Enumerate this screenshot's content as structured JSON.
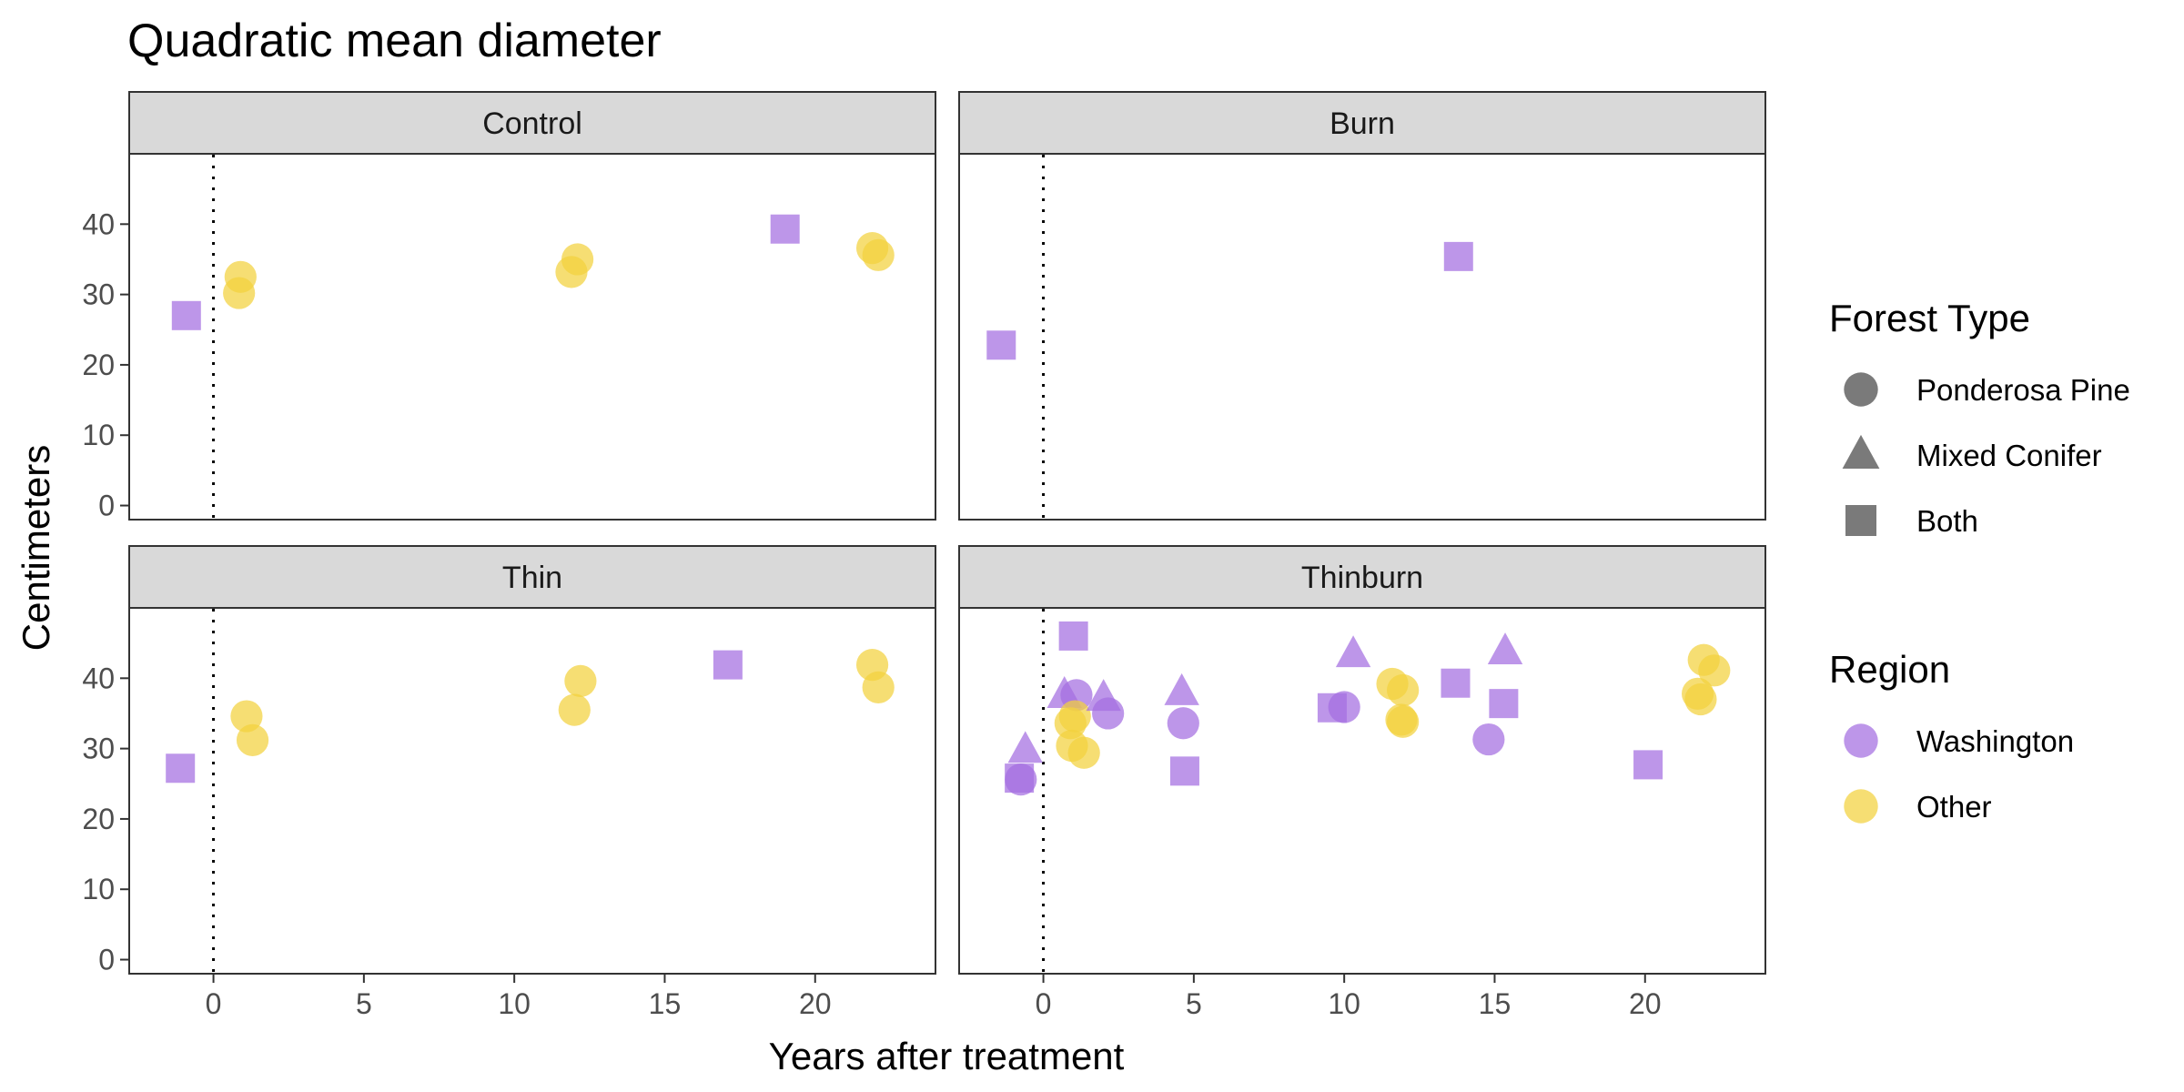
{
  "chart_data": {
    "type": "scatter",
    "title": "Quadratic mean diameter",
    "xlabel": "Years after treatment",
    "ylabel": "Centimeters",
    "xlim": [
      -2.8,
      24.0
    ],
    "ylim": [
      -2.0,
      50.0
    ],
    "xticks": [
      0,
      5,
      10,
      15,
      20
    ],
    "yticks": [
      0,
      10,
      20,
      30,
      40
    ],
    "reference_line_x": 0,
    "grid": false,
    "legend_position": "right",
    "colors": {
      "Washington": "#a46ee0",
      "Other": "#f2d13d"
    },
    "legends": [
      {
        "title": "Forest Type",
        "entries": [
          {
            "label": "Ponderosa Pine",
            "shape": "circle"
          },
          {
            "label": "Mixed Conifer",
            "shape": "triangle"
          },
          {
            "label": "Both",
            "shape": "square"
          }
        ]
      },
      {
        "title": "Region",
        "entries": [
          {
            "label": "Washington",
            "color_key": "Washington"
          },
          {
            "label": "Other",
            "color_key": "Other"
          }
        ]
      }
    ],
    "panels": [
      {
        "name": "Control",
        "points": [
          {
            "x": -0.9,
            "y": 27.0,
            "shape": "square",
            "region": "Washington"
          },
          {
            "x": 0.9,
            "y": 32.5,
            "shape": "circle",
            "region": "Other"
          },
          {
            "x": 0.85,
            "y": 30.2,
            "shape": "circle",
            "region": "Other"
          },
          {
            "x": 12.1,
            "y": 35.0,
            "shape": "circle",
            "region": "Other"
          },
          {
            "x": 11.9,
            "y": 33.2,
            "shape": "circle",
            "region": "Other"
          },
          {
            "x": 19.0,
            "y": 39.3,
            "shape": "square",
            "region": "Washington"
          },
          {
            "x": 21.9,
            "y": 36.6,
            "shape": "circle",
            "region": "Other"
          },
          {
            "x": 22.1,
            "y": 35.6,
            "shape": "circle",
            "region": "Other"
          }
        ]
      },
      {
        "name": "Burn",
        "points": [
          {
            "x": -1.4,
            "y": 22.8,
            "shape": "square",
            "region": "Washington"
          },
          {
            "x": 13.8,
            "y": 35.4,
            "shape": "square",
            "region": "Washington"
          }
        ]
      },
      {
        "name": "Thin",
        "points": [
          {
            "x": -1.1,
            "y": 27.2,
            "shape": "square",
            "region": "Washington"
          },
          {
            "x": 1.1,
            "y": 34.6,
            "shape": "circle",
            "region": "Other"
          },
          {
            "x": 1.3,
            "y": 31.2,
            "shape": "circle",
            "region": "Other"
          },
          {
            "x": 12.2,
            "y": 39.6,
            "shape": "circle",
            "region": "Other"
          },
          {
            "x": 12.0,
            "y": 35.5,
            "shape": "circle",
            "region": "Other"
          },
          {
            "x": 17.1,
            "y": 41.9,
            "shape": "square",
            "region": "Washington"
          },
          {
            "x": 21.9,
            "y": 41.9,
            "shape": "circle",
            "region": "Other"
          },
          {
            "x": 22.1,
            "y": 38.7,
            "shape": "circle",
            "region": "Other"
          }
        ]
      },
      {
        "name": "Thinburn",
        "points": [
          {
            "x": -0.8,
            "y": 25.8,
            "shape": "square",
            "region": "Washington"
          },
          {
            "x": -0.75,
            "y": 25.6,
            "shape": "circle",
            "region": "Washington"
          },
          {
            "x": -0.6,
            "y": 29.8,
            "shape": "triangle",
            "region": "Washington"
          },
          {
            "x": 0.7,
            "y": 37.6,
            "shape": "triangle",
            "region": "Washington"
          },
          {
            "x": 1.0,
            "y": 46.0,
            "shape": "square",
            "region": "Washington"
          },
          {
            "x": 1.1,
            "y": 37.6,
            "shape": "circle",
            "region": "Washington"
          },
          {
            "x": 0.9,
            "y": 33.6,
            "shape": "circle",
            "region": "Other"
          },
          {
            "x": 1.05,
            "y": 34.6,
            "shape": "circle",
            "region": "Other"
          },
          {
            "x": 0.95,
            "y": 30.4,
            "shape": "circle",
            "region": "Other"
          },
          {
            "x": 1.35,
            "y": 29.4,
            "shape": "circle",
            "region": "Other"
          },
          {
            "x": 2.0,
            "y": 37.2,
            "shape": "triangle",
            "region": "Washington"
          },
          {
            "x": 2.15,
            "y": 35.0,
            "shape": "circle",
            "region": "Washington"
          },
          {
            "x": 4.6,
            "y": 38.0,
            "shape": "triangle",
            "region": "Washington"
          },
          {
            "x": 4.65,
            "y": 33.6,
            "shape": "circle",
            "region": "Washington"
          },
          {
            "x": 4.7,
            "y": 26.8,
            "shape": "square",
            "region": "Washington"
          },
          {
            "x": 9.6,
            "y": 35.8,
            "shape": "square",
            "region": "Washington"
          },
          {
            "x": 10.0,
            "y": 35.9,
            "shape": "circle",
            "region": "Washington"
          },
          {
            "x": 10.3,
            "y": 43.4,
            "shape": "triangle",
            "region": "Washington"
          },
          {
            "x": 11.6,
            "y": 39.2,
            "shape": "circle",
            "region": "Other"
          },
          {
            "x": 11.95,
            "y": 38.3,
            "shape": "circle",
            "region": "Other"
          },
          {
            "x": 11.9,
            "y": 34.1,
            "shape": "circle",
            "region": "Other"
          },
          {
            "x": 11.95,
            "y": 33.8,
            "shape": "circle",
            "region": "Other"
          },
          {
            "x": 13.7,
            "y": 39.3,
            "shape": "square",
            "region": "Washington"
          },
          {
            "x": 14.8,
            "y": 31.3,
            "shape": "circle",
            "region": "Washington"
          },
          {
            "x": 15.3,
            "y": 36.4,
            "shape": "square",
            "region": "Washington"
          },
          {
            "x": 15.35,
            "y": 43.8,
            "shape": "triangle",
            "region": "Washington"
          },
          {
            "x": 20.1,
            "y": 27.7,
            "shape": "square",
            "region": "Washington"
          },
          {
            "x": 21.75,
            "y": 37.8,
            "shape": "circle",
            "region": "Other"
          },
          {
            "x": 21.85,
            "y": 37.0,
            "shape": "circle",
            "region": "Other"
          },
          {
            "x": 21.95,
            "y": 42.6,
            "shape": "circle",
            "region": "Other"
          },
          {
            "x": 22.3,
            "y": 41.1,
            "shape": "circle",
            "region": "Other"
          }
        ]
      }
    ]
  }
}
